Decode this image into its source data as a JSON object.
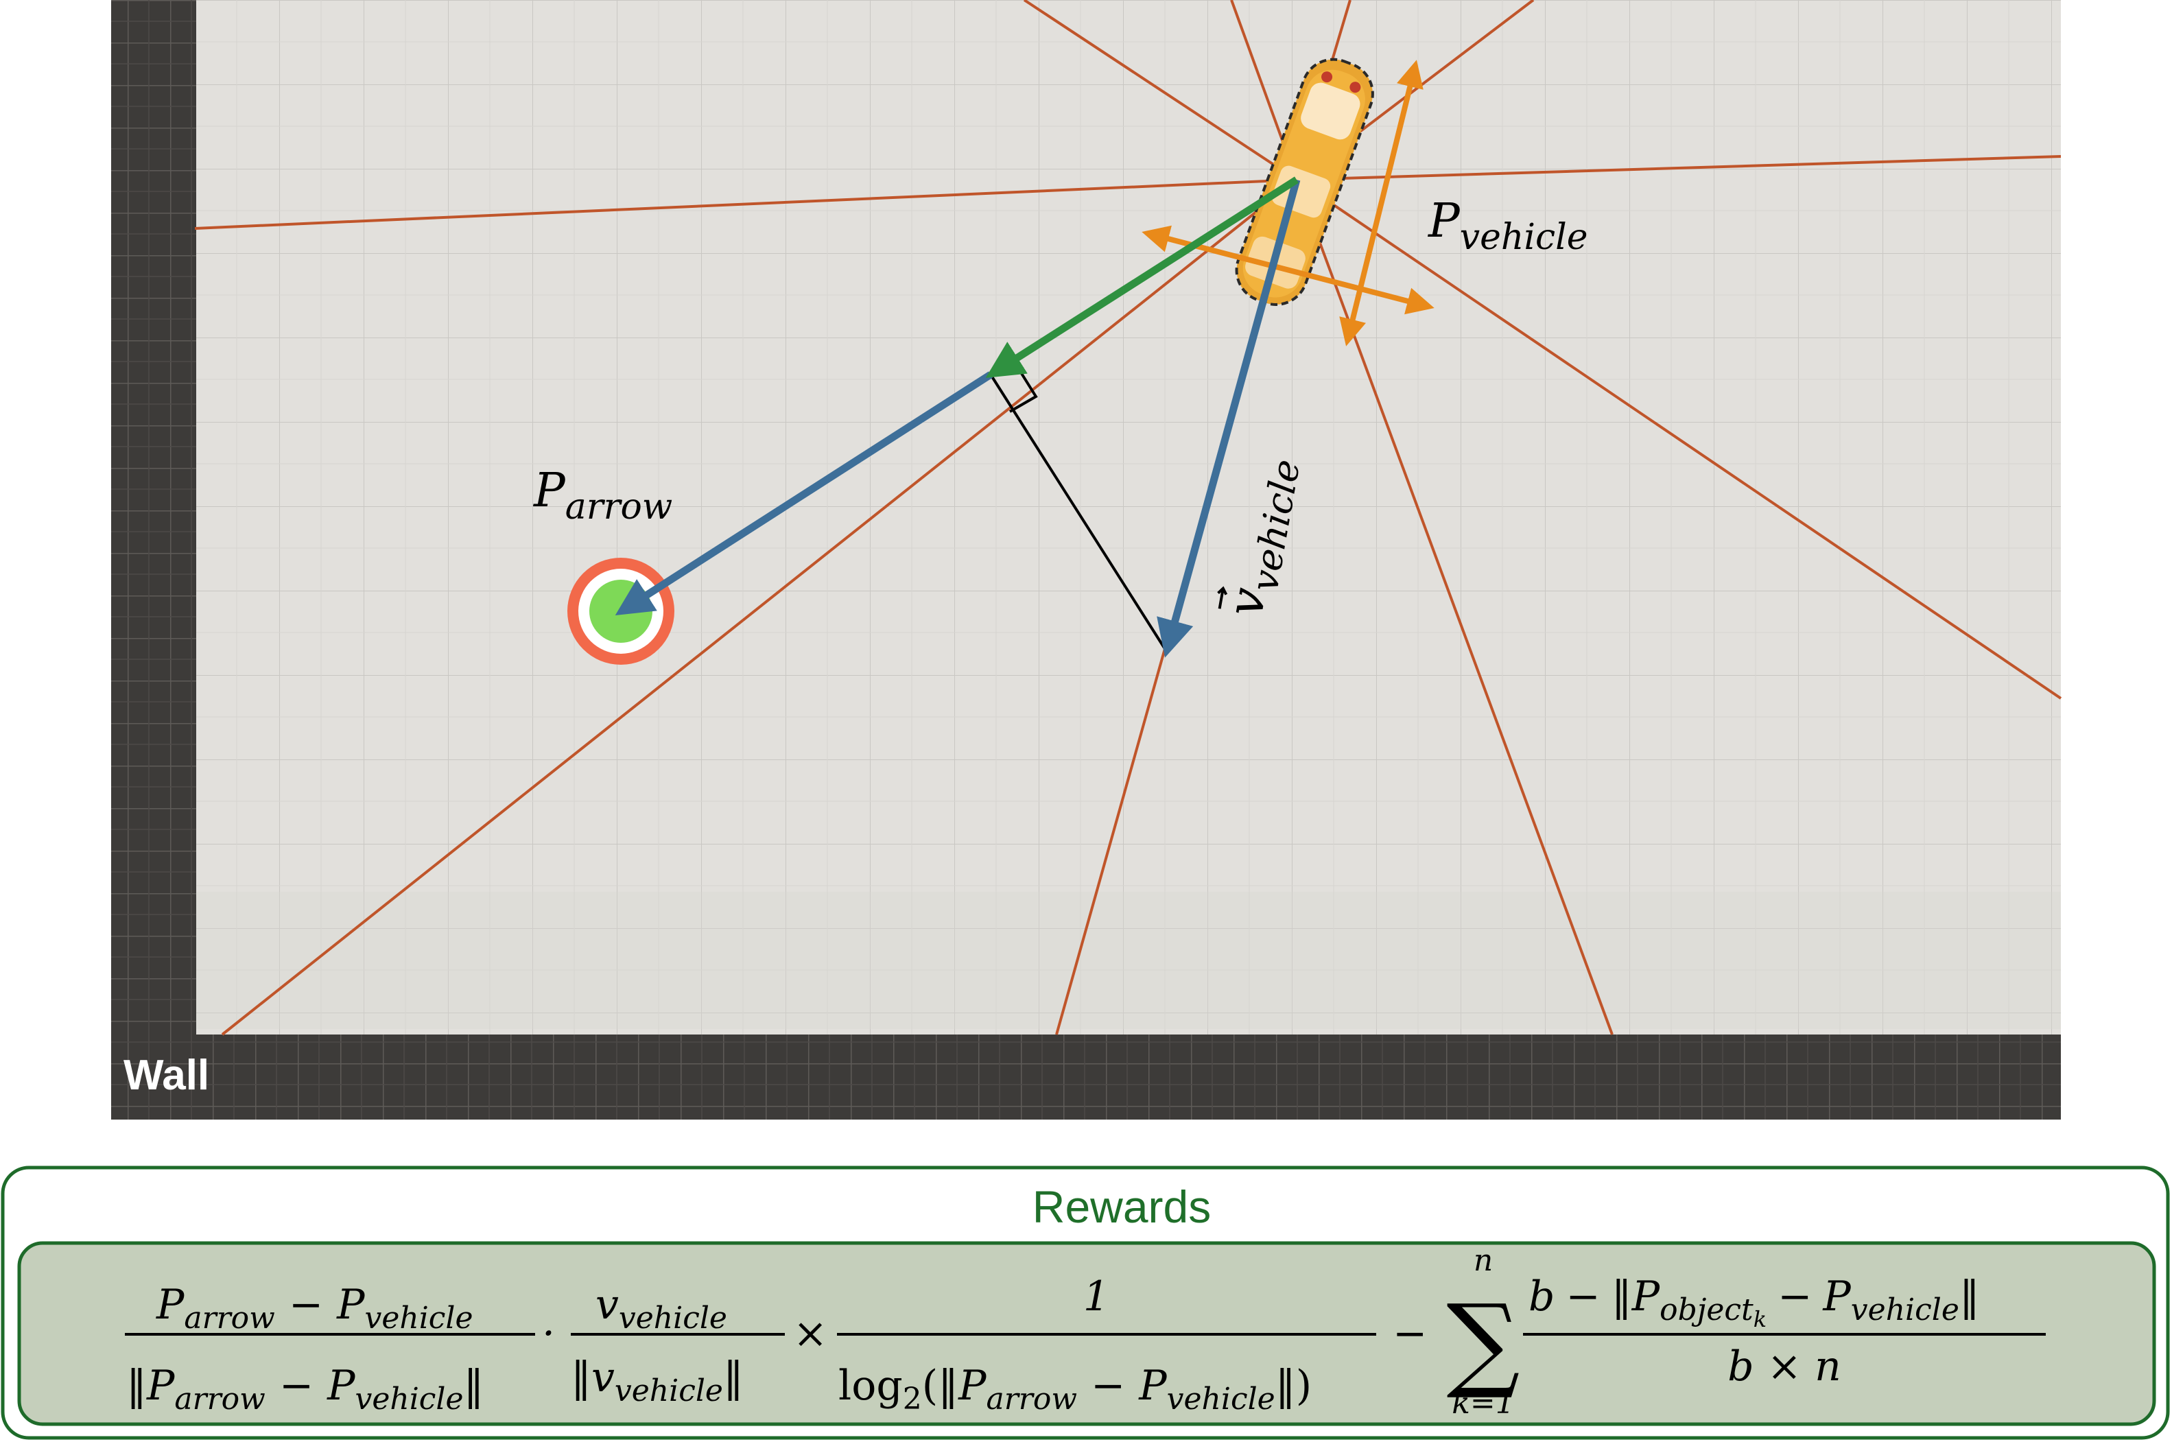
{
  "scene": {
    "wall_label": "Wall",
    "labels": {
      "p_vehicle": {
        "base": "P",
        "sub": "vehicle"
      },
      "p_arrow": {
        "base": "P",
        "sub": "arrow"
      },
      "v_vehicle": {
        "base": "v",
        "sub": "vehicle",
        "vector": true
      }
    }
  },
  "rewards": {
    "title": "Rewards",
    "formula": {
      "term1_num": {
        "a": "P",
        "a_sub": "arrow",
        "op": "−",
        "b": "P",
        "b_sub": "vehicle"
      },
      "term1_den": {
        "a": "P",
        "a_sub": "arrow",
        "op": "−",
        "b": "P",
        "b_sub": "vehicle"
      },
      "dot": "·",
      "term2_num": {
        "a": "v",
        "a_sub": "vehicle"
      },
      "term2_den": {
        "a": "v",
        "a_sub": "vehicle"
      },
      "times": "×",
      "term3_num": "1",
      "term3_den": {
        "log": "log",
        "log_sub": "2",
        "a": "P",
        "a_sub": "arrow",
        "op": "−",
        "b": "P",
        "b_sub": "vehicle"
      },
      "minus": "−",
      "sum_upper": "n",
      "sum_lower": "k=1",
      "term4_num": {
        "b": "b",
        "op": "−",
        "p1": "P",
        "p1_sub": "object",
        "p1_subsub": "k",
        "op2": "−",
        "p2": "P",
        "p2_sub": "vehicle"
      },
      "term4_den": "b × n"
    }
  },
  "colors": {
    "floor": "#e2e0dc",
    "wall": "#3d3b39",
    "ray": "#c0552a",
    "green_arrow": "#2f9140",
    "blue_arrow": "#3e6f99",
    "orange_arrow": "#e98a1a",
    "target_ring": "#f2694a",
    "target_center": "#7ed957",
    "rewards_border": "#1e6b2a",
    "formula_fill": "#c5cfbb"
  }
}
